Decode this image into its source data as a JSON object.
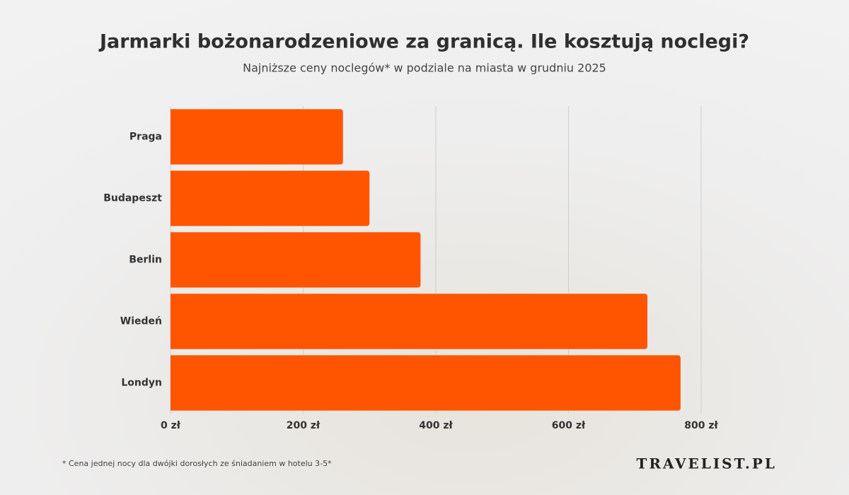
{
  "chart_data": {
    "type": "barh",
    "title": "Jarmarki bożonarodzeniowe za granicą. Ile kosztują noclegi?",
    "subtitle": "Najniższe ceny noclegów* w podziale na miasta w grudniu 2025",
    "categories": [
      "Praga",
      "Budapeszt",
      "Berlin",
      "Wiedeń",
      "Londyn"
    ],
    "values": [
      260,
      300,
      377,
      719,
      769
    ],
    "color": "#ff5500",
    "xlim": [
      0,
      800
    ],
    "xticks": [
      {
        "value": 0,
        "label": "0 zł"
      },
      {
        "value": 200,
        "label": "200 zł"
      },
      {
        "value": 400,
        "label": "400 zł"
      },
      {
        "value": 600,
        "label": "600 zł"
      },
      {
        "value": 800,
        "label": "800 zł"
      }
    ],
    "grid": true,
    "footnote": "* Cena jednej nocy dla dwójki dorosłych ze śniadaniem w hotelu 3-5*",
    "brand": "TRAVELIST.PL"
  }
}
